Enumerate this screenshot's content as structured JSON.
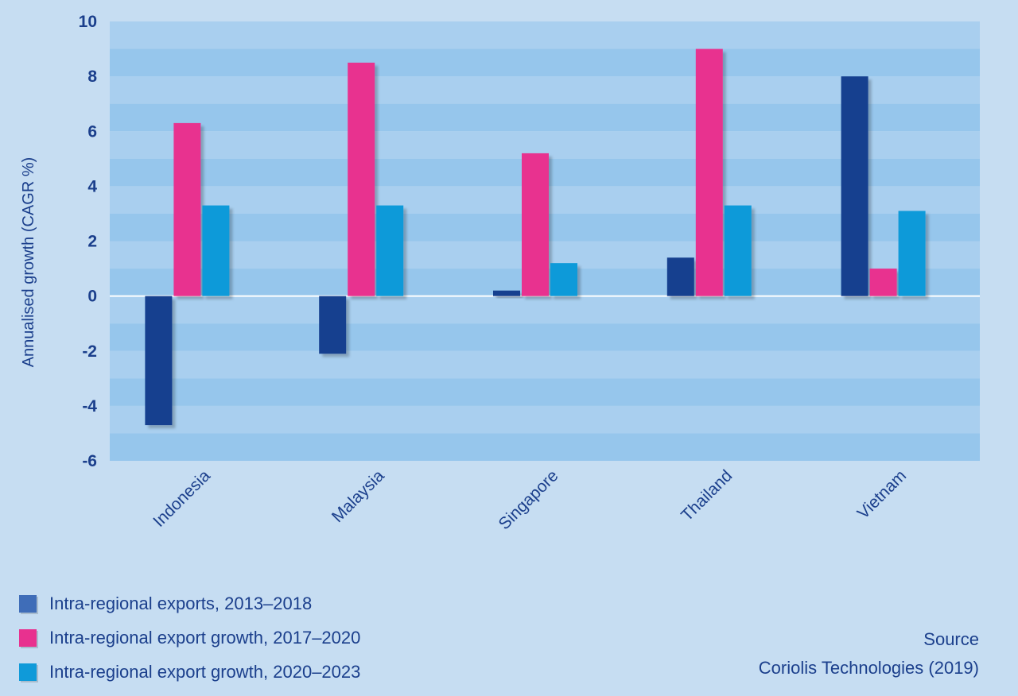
{
  "colors": {
    "page_bg": "#c6ddf2",
    "band_light": "#a9cfef",
    "band_dark": "#96c6ec",
    "zero_line": "#ffffff",
    "text": "#1b3f8c"
  },
  "chart_data": {
    "type": "bar",
    "title": "",
    "xlabel": "",
    "ylabel": "Annualised growth (CAGR %)",
    "ylim": [
      -6,
      10
    ],
    "yticks": [
      10,
      8,
      6,
      4,
      2,
      0,
      -2,
      -4,
      -6
    ],
    "categories": [
      "Indonesia",
      "Malaysia",
      "Singapore",
      "Thailand",
      "Vietnam"
    ],
    "series": [
      {
        "name": "Intra-regional exports, 2013–2018",
        "color": "#123f8f",
        "values": [
          -4.7,
          -2.1,
          0.2,
          1.4,
          8.0
        ]
      },
      {
        "name": "Intra-regional export growth, 2017–2020",
        "color": "#e8318f",
        "values": [
          6.3,
          8.5,
          5.2,
          9.0,
          1.0
        ]
      },
      {
        "name": "Intra-regional export growth, 2020–2023",
        "color": "#0f9ad9",
        "values": [
          3.3,
          3.3,
          1.2,
          3.3,
          3.1
        ]
      }
    ],
    "legend_position": "bottom-left"
  },
  "legend": {
    "items": [
      {
        "label": "Intra-regional exports, 2013–2018",
        "color": "#3f6db8"
      },
      {
        "label": "Intra-regional export growth, 2017–2020",
        "color": "#e8318f"
      },
      {
        "label": "Intra-regional export growth, 2020–2023",
        "color": "#0f9ad9"
      }
    ]
  },
  "source": {
    "heading": "Source",
    "text": "Coriolis Technologies (2019)"
  }
}
